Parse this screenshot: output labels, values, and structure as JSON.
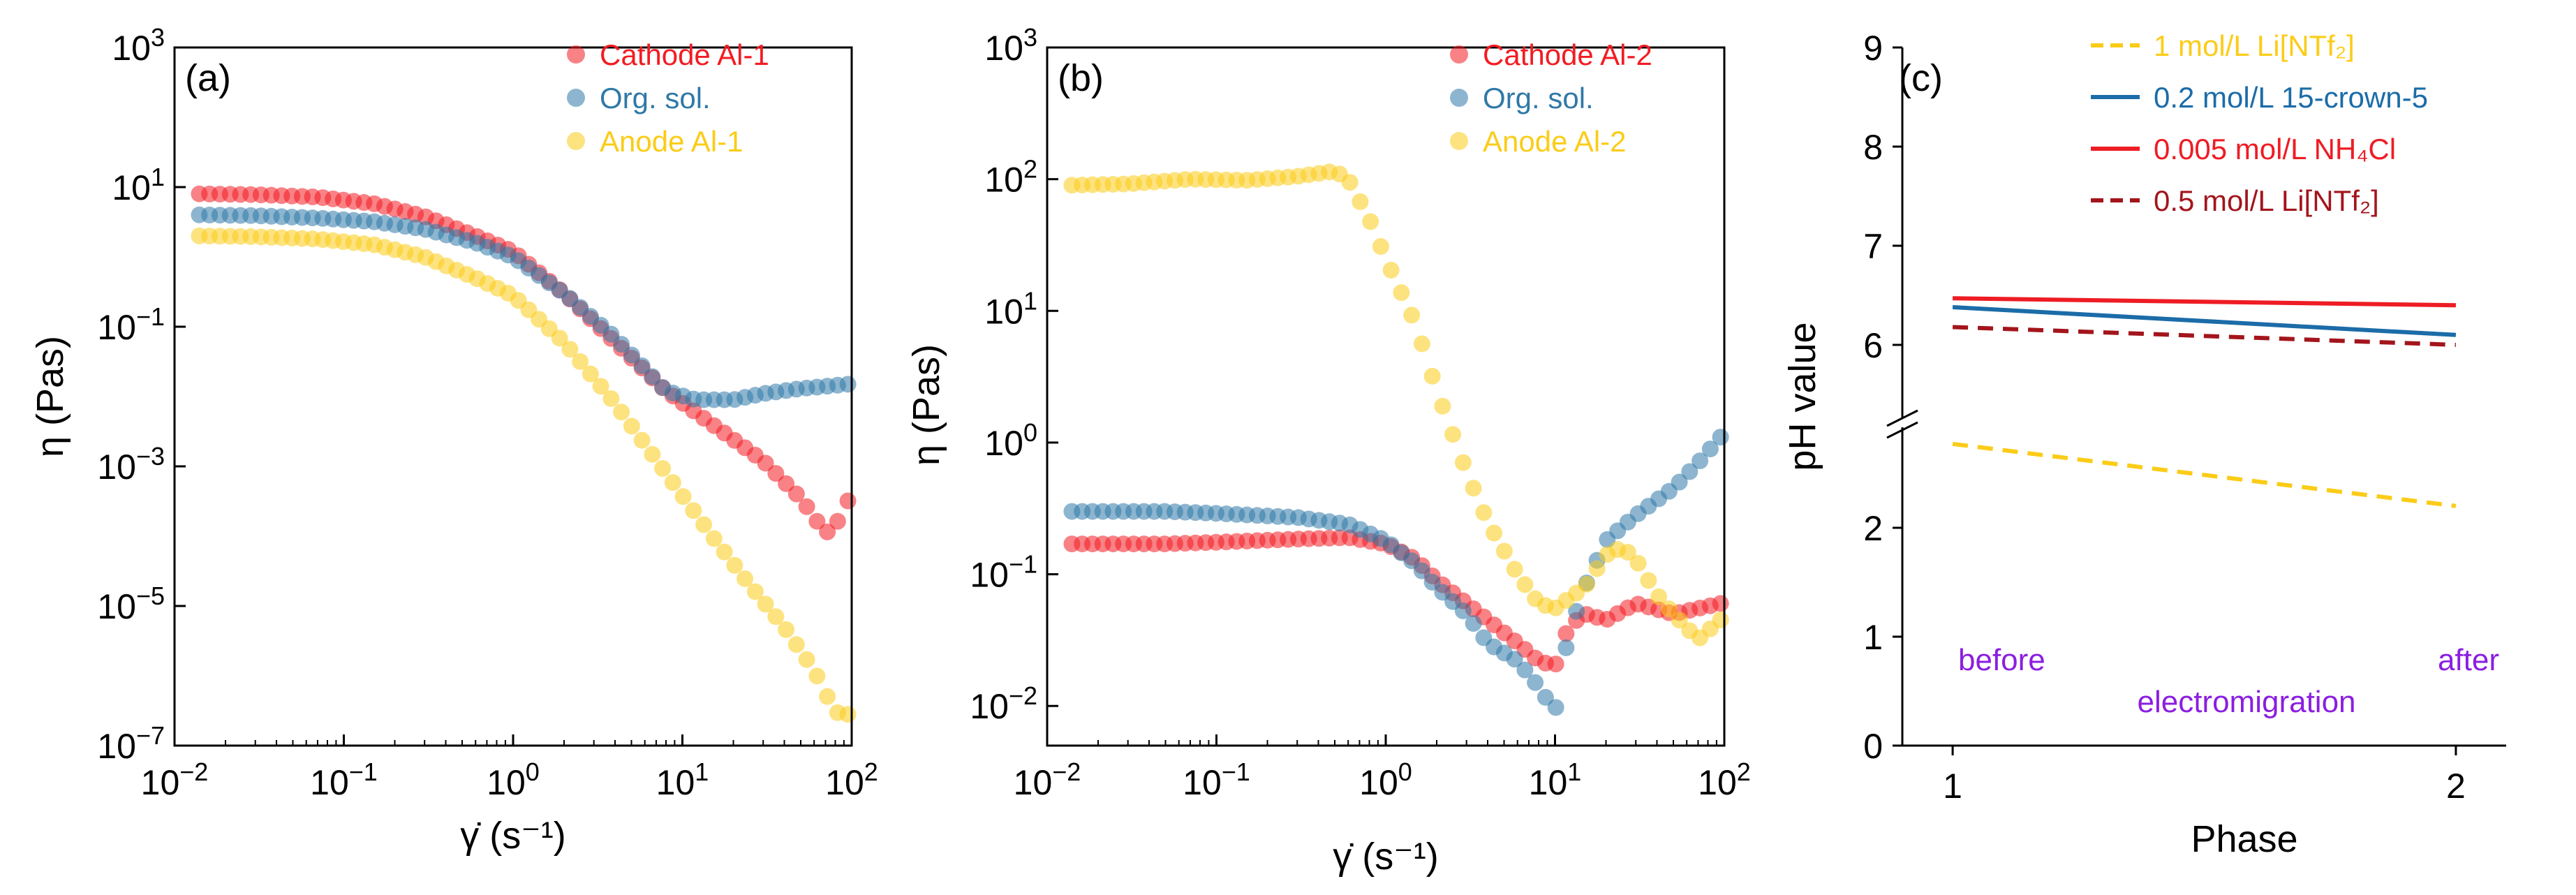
{
  "chart_data": [
    {
      "type": "scatter",
      "panel": "(a)",
      "xscale": "log",
      "yscale": "log",
      "xlim": [
        0.01,
        100
      ],
      "ylim": [
        1e-07,
        1000
      ],
      "xlabel": "γ̇ (s⁻¹)",
      "ylabel": "η (Pas)",
      "xticks": [
        {
          "v": 0.01,
          "b": "10",
          "e": "−2"
        },
        {
          "v": 0.1,
          "b": "10",
          "e": "−1"
        },
        {
          "v": 1,
          "b": "10",
          "e": "0"
        },
        {
          "v": 10,
          "b": "10",
          "e": "1"
        },
        {
          "v": 100,
          "b": "10",
          "e": "2"
        }
      ],
      "yticks": [
        {
          "v": 1e-07,
          "b": "10",
          "e": "−7"
        },
        {
          "v": 1e-05,
          "b": "10",
          "e": "−5"
        },
        {
          "v": 0.001,
          "b": "10",
          "e": "−3"
        },
        {
          "v": 0.1,
          "b": "10",
          "e": "−1"
        },
        {
          "v": 10,
          "b": "10",
          "e": "1"
        },
        {
          "v": 1000,
          "b": "10",
          "e": "3"
        }
      ],
      "legend_position": "top-right",
      "series": [
        {
          "name": "Cathode Al-1",
          "color": "#f21c22",
          "points": [
            [
              0.014,
              8.0
            ],
            [
              0.03,
              7.8
            ],
            [
              0.07,
              7.2
            ],
            [
              0.15,
              5.8
            ],
            [
              0.3,
              3.8
            ],
            [
              0.6,
              2.0
            ],
            [
              1,
              1.2
            ],
            [
              2,
              0.3
            ],
            [
              4,
              0.06
            ],
            [
              8,
              0.012
            ],
            [
              15,
              0.004
            ],
            [
              30,
              0.0012
            ],
            [
              50,
              0.00035
            ],
            [
              70,
              0.00011
            ],
            [
              80,
              0.00014
            ],
            [
              95,
              0.00032
            ]
          ]
        },
        {
          "name": "Org. sol.",
          "color": "#2f79a8",
          "points": [
            [
              0.014,
              4.0
            ],
            [
              0.03,
              3.9
            ],
            [
              0.07,
              3.6
            ],
            [
              0.15,
              3.2
            ],
            [
              0.3,
              2.5
            ],
            [
              0.6,
              1.6
            ],
            [
              1,
              1.0
            ],
            [
              2,
              0.3
            ],
            [
              4,
              0.07
            ],
            [
              8,
              0.012
            ],
            [
              12,
              0.009
            ],
            [
              20,
              0.009
            ],
            [
              30,
              0.011
            ],
            [
              50,
              0.013
            ],
            [
              70,
              0.014
            ],
            [
              95,
              0.015
            ]
          ]
        },
        {
          "name": "Anode Al-1",
          "color": "#fbcc18",
          "points": [
            [
              0.014,
              2.0
            ],
            [
              0.03,
              1.95
            ],
            [
              0.07,
              1.8
            ],
            [
              0.15,
              1.5
            ],
            [
              0.3,
              1.0
            ],
            [
              0.6,
              0.5
            ],
            [
              1,
              0.28
            ],
            [
              2,
              0.06
            ],
            [
              4,
              0.008
            ],
            [
              8,
              0.0008
            ],
            [
              15,
              0.0001
            ],
            [
              25,
              2e-05
            ],
            [
              40,
              5e-06
            ],
            [
              60,
              1.2e-06
            ],
            [
              80,
              3e-07
            ],
            [
              95,
              2.8e-07
            ]
          ]
        }
      ]
    },
    {
      "type": "scatter",
      "panel": "(b)",
      "xscale": "log",
      "yscale": "log",
      "xlim": [
        0.01,
        100
      ],
      "ylim": [
        0.005,
        1000
      ],
      "xlabel": "γ̇ (s⁻¹)",
      "ylabel": "η (Pas)",
      "xticks": [
        {
          "v": 0.01,
          "b": "10",
          "e": "−2"
        },
        {
          "v": 0.1,
          "b": "10",
          "e": "−1"
        },
        {
          "v": 1,
          "b": "10",
          "e": "0"
        },
        {
          "v": 10,
          "b": "10",
          "e": "1"
        },
        {
          "v": 100,
          "b": "10",
          "e": "2"
        }
      ],
      "yticks": [
        {
          "v": 0.01,
          "b": "10",
          "e": "−2"
        },
        {
          "v": 0.1,
          "b": "10",
          "e": "−1"
        },
        {
          "v": 1,
          "b": "10",
          "e": "0"
        },
        {
          "v": 10,
          "b": "10",
          "e": "1"
        },
        {
          "v": 100,
          "b": "10",
          "e": "2"
        },
        {
          "v": 1000,
          "b": "10",
          "e": "3"
        }
      ],
      "legend_position": "top-right",
      "series": [
        {
          "name": "Cathode Al-2",
          "color": "#f21c22",
          "points": [
            [
              0.014,
              0.17
            ],
            [
              0.05,
              0.17
            ],
            [
              0.1,
              0.175
            ],
            [
              0.3,
              0.185
            ],
            [
              0.6,
              0.19
            ],
            [
              1,
              0.17
            ],
            [
              1.5,
              0.13
            ],
            [
              2,
              0.09
            ],
            [
              3,
              0.06
            ],
            [
              4,
              0.045
            ],
            [
              6,
              0.03
            ],
            [
              8,
              0.022
            ],
            [
              10,
              0.02
            ],
            [
              12,
              0.04
            ],
            [
              15,
              0.05
            ],
            [
              20,
              0.045
            ],
            [
              30,
              0.06
            ],
            [
              50,
              0.05
            ],
            [
              70,
              0.055
            ],
            [
              95,
              0.06
            ]
          ]
        },
        {
          "name": "Org. sol.",
          "color": "#2f79a8",
          "points": [
            [
              0.014,
              0.3
            ],
            [
              0.05,
              0.3
            ],
            [
              0.1,
              0.29
            ],
            [
              0.3,
              0.27
            ],
            [
              0.6,
              0.24
            ],
            [
              1,
              0.18
            ],
            [
              1.5,
              0.12
            ],
            [
              2,
              0.08
            ],
            [
              3,
              0.05
            ],
            [
              4,
              0.03
            ],
            [
              6,
              0.022
            ],
            [
              8,
              0.014
            ],
            [
              10,
              0.009
            ],
            [
              12,
              0.035
            ],
            [
              15,
              0.08
            ],
            [
              20,
              0.18
            ],
            [
              30,
              0.28
            ],
            [
              50,
              0.45
            ],
            [
              70,
              0.7
            ],
            [
              95,
              1.1
            ]
          ]
        },
        {
          "name": "Anode Al-2",
          "color": "#fbcc18",
          "points": [
            [
              0.014,
              90
            ],
            [
              0.03,
              92
            ],
            [
              0.07,
              100
            ],
            [
              0.15,
              98
            ],
            [
              0.3,
              105
            ],
            [
              0.5,
              115
            ],
            [
              0.6,
              100
            ],
            [
              0.8,
              50
            ],
            [
              1,
              25
            ],
            [
              1.5,
              8
            ],
            [
              2,
              2.5
            ],
            [
              3,
              0.6
            ],
            [
              4,
              0.25
            ],
            [
              6,
              0.1
            ],
            [
              8,
              0.06
            ],
            [
              10,
              0.055
            ],
            [
              15,
              0.08
            ],
            [
              20,
              0.14
            ],
            [
              25,
              0.16
            ],
            [
              30,
              0.13
            ],
            [
              40,
              0.07
            ],
            [
              50,
              0.05
            ],
            [
              70,
              0.032
            ],
            [
              95,
              0.045
            ]
          ]
        }
      ]
    },
    {
      "type": "line",
      "panel": "(c)",
      "x": [
        1,
        2
      ],
      "xlim": [
        0.9,
        2.1
      ],
      "xlabel": "Phase",
      "ylabel": "pH value",
      "axis_break": {
        "lower_max": 3,
        "upper_min": 5.5
      },
      "xticks": [
        {
          "v": 1,
          "t": "1"
        },
        {
          "v": 2,
          "t": "2"
        }
      ],
      "yticks": [
        0,
        1,
        2,
        6,
        7,
        8,
        9
      ],
      "legend_position": "top-right",
      "series": [
        {
          "name": "1 mol/L Li[NTf₂]",
          "color": "#fbcc18",
          "style": "dashed",
          "values": [
            2.77,
            2.2
          ]
        },
        {
          "name": "0.2 mol/L 15-crown-5",
          "color": "#1b6ca8",
          "style": "solid",
          "values": [
            6.38,
            6.1
          ]
        },
        {
          "name": "0.005 mol/L NH₄Cl",
          "color": "#ee1c24",
          "style": "solid",
          "values": [
            6.47,
            6.4
          ]
        },
        {
          "name": "0.5 mol/L Li[NTf₂]",
          "color": "#a3151c",
          "style": "dashed",
          "values": [
            6.18,
            6.0
          ]
        }
      ],
      "annotations": {
        "before": "before",
        "after": "after",
        "middle": "electromigration"
      }
    }
  ]
}
